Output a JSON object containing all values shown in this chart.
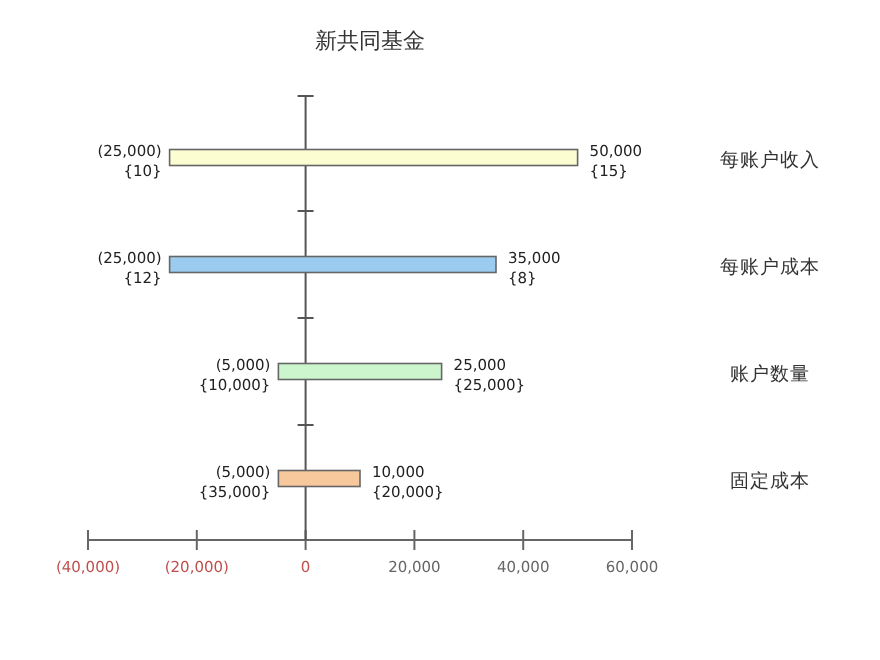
{
  "chart_data": {
    "type": "bar",
    "orientation": "horizontal",
    "title": "新共同基金",
    "categories": [
      "每账户收入",
      "每账户成本",
      "账户数量",
      "固定成本"
    ],
    "base": [
      -25000,
      -25000,
      -5000,
      -5000
    ],
    "values": [
      75000,
      60000,
      30000,
      15000
    ],
    "colors": [
      "#fdfdd2",
      "#9ccbf0",
      "#cdf5cd",
      "#f7c89c"
    ],
    "xlim": [
      -40000,
      60000
    ],
    "xticks": [
      {
        "value": -40000,
        "label": "(40,000)"
      },
      {
        "value": -20000,
        "label": "(20,000)"
      },
      0,
      {
        "value": 20000,
        "label": "20,000"
      },
      {
        "value": 40000,
        "label": "40,000"
      },
      {
        "value": 60000,
        "label": "60,000"
      }
    ],
    "annotations": [
      {
        "text": "(25,000)\n{10}",
        "x": -25000,
        "y": "每账户收入"
      },
      {
        "text": "50,000\n{15}",
        "x": 50000,
        "y": "每账户收入"
      },
      {
        "text": "(25,000)\n{12}",
        "x": -25000,
        "y": "每账户成本"
      },
      {
        "text": "35,000\n{8}",
        "x": 35000,
        "y": "每账户成本"
      },
      {
        "text": "(5,000)\n{10,000}",
        "x": -5000,
        "y": "账户数量"
      },
      {
        "text": "25,000\n{25,000}",
        "x": 25000,
        "y": "账户数量"
      },
      {
        "text": "(5,000)\n{35,000}",
        "x": -5000,
        "y": "固定成本"
      },
      {
        "text": "10,000\n{20,000}",
        "x": 10000,
        "y": "固定成本"
      }
    ]
  }
}
